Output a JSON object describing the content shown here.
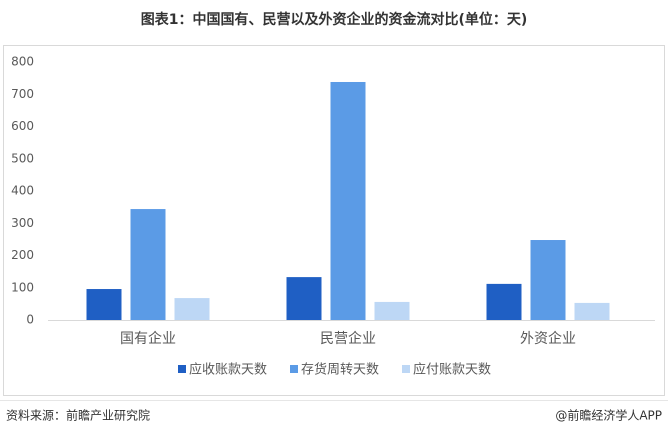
{
  "chart_data": {
    "type": "bar",
    "title": "图表1：中国国有、民营以及外资企业的资金流对比(单位：天)",
    "categories": [
      "国有企业",
      "民营企业",
      "外资企业"
    ],
    "series": [
      {
        "name": "应收账款天数",
        "color": "#1f5fc4",
        "values": [
          96,
          133,
          112
        ]
      },
      {
        "name": "存货周转天数",
        "color": "#5b9be6",
        "values": [
          344,
          738,
          248
        ]
      },
      {
        "name": "应付账款天数",
        "color": "#bdd7f5",
        "values": [
          68,
          56,
          53
        ]
      }
    ],
    "ylim": [
      0,
      800
    ],
    "yticks": [
      0,
      100,
      200,
      300,
      400,
      500,
      600,
      700,
      800
    ],
    "grid": false,
    "legend": "bottom",
    "source": "资料来源：前瞻产业研究院",
    "credit": "@前瞻经济学人APP"
  }
}
